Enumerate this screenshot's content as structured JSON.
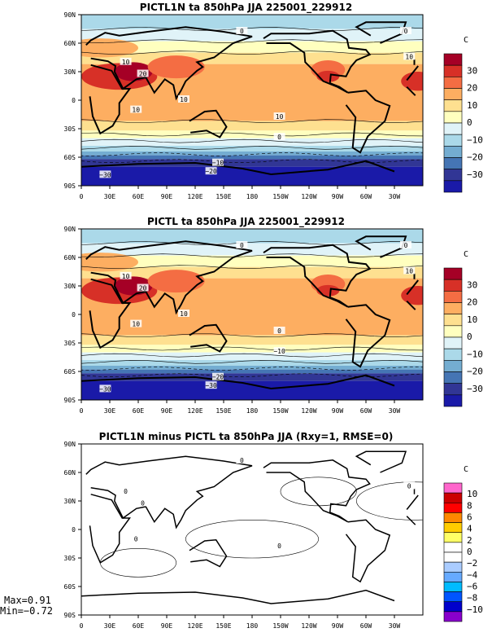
{
  "panels": [
    {
      "title": "PICTL1N ta 850hPa JJA 225001_229912",
      "units": "C",
      "colorbar": {
        "labels": [
          "30",
          "20",
          "10",
          "0",
          "−10",
          "−20",
          "−30"
        ],
        "colors": [
          "#a50026",
          "#d73027",
          "#f46d43",
          "#fdae61",
          "#fee090",
          "#ffffbf",
          "#e0f3f8",
          "#abd9e9",
          "#74add1",
          "#4575b4",
          "#313695",
          "#1a1aa8"
        ]
      },
      "contour_labels": [
        "0",
        "10",
        "20",
        "10",
        "10",
        "10",
        "0",
        "−10",
        "−30",
        "−20",
        "0",
        "10"
      ]
    },
    {
      "title": "PICTL ta 850hPa JJA 225001_229912",
      "units": "C",
      "colorbar": {
        "labels": [
          "30",
          "20",
          "10",
          "0",
          "−10",
          "−20",
          "−30"
        ],
        "colors": [
          "#a50026",
          "#d73027",
          "#f46d43",
          "#fdae61",
          "#fee090",
          "#ffffbf",
          "#e0f3f8",
          "#abd9e9",
          "#74add1",
          "#4575b4",
          "#313695",
          "#1a1aa8"
        ]
      },
      "contour_labels": [
        "0",
        "10",
        "20",
        "10",
        "10",
        "0",
        "−10",
        "−20",
        "−30",
        "−30",
        "0",
        "10"
      ]
    },
    {
      "title": "PICTL1N minus PICTL ta 850hPa JJA (Rxy=1, RMSE=0)",
      "units": "C",
      "colorbar": {
        "labels": [
          "10",
          "8",
          "6",
          "4",
          "2",
          "0",
          "−2",
          "−4",
          "−6",
          "−8",
          "−10"
        ],
        "colors": [
          "#ff66cc",
          "#cc0000",
          "#ff0000",
          "#ff8800",
          "#ffcc00",
          "#ffff66",
          "#ffffff",
          "#ffffff",
          "#aaccff",
          "#66aaff",
          "#00bbff",
          "#0055ff",
          "#0000cc",
          "#8800cc"
        ]
      },
      "contour_labels": [
        "0",
        "0",
        "0",
        "0",
        "0",
        "0"
      ],
      "stats": {
        "max": "Max=0.91",
        "min": "Min=−0.72"
      }
    }
  ],
  "map_axes": {
    "lat_labels": [
      "90N",
      "60N",
      "30N",
      "0",
      "30S",
      "60S",
      "90S"
    ],
    "lon_labels": [
      "0",
      "30E",
      "60E",
      "90E",
      "120E",
      "150E",
      "180",
      "150W",
      "120W",
      "90W",
      "60W",
      "30W"
    ]
  }
}
